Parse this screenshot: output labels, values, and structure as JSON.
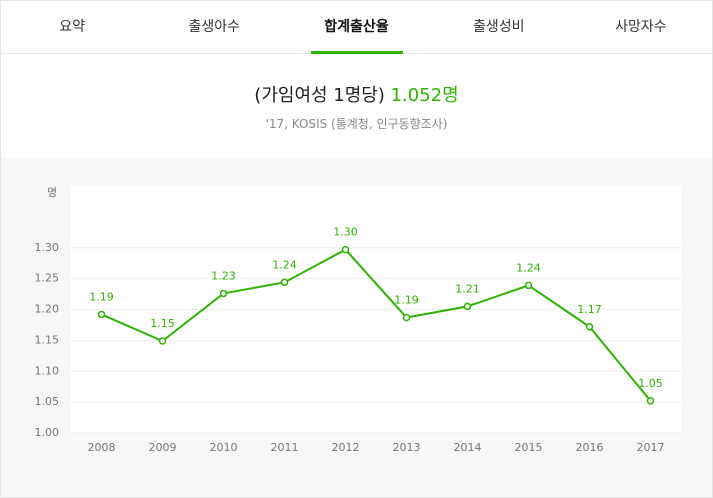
{
  "tabs": [
    "요약",
    "출생아수",
    "합계출산율",
    "출생성비",
    "사망자수"
  ],
  "active_tab": 2,
  "header": {
    "prefix": "(가임여성 1명당)",
    "highlight": "1.052명",
    "source": "'17, KOSIS (통계청, 인구동향조사)"
  },
  "chart_data": {
    "type": "line",
    "y_label": "명",
    "categories": [
      "2008",
      "2009",
      "2010",
      "2011",
      "2012",
      "2013",
      "2014",
      "2015",
      "2016",
      "2017"
    ],
    "values": [
      1.192,
      1.149,
      1.226,
      1.244,
      1.297,
      1.187,
      1.205,
      1.239,
      1.172,
      1.052
    ],
    "value_labels": [
      "1.19",
      "1.15",
      "1.23",
      "1.24",
      "1.30",
      "1.19",
      "1.21",
      "1.24",
      "1.17",
      "1.05"
    ],
    "color": "#2db400",
    "ylim": [
      1.0,
      1.4
    ],
    "yticks": [
      {
        "value": 1.0,
        "label": "1.00"
      },
      {
        "value": 1.05,
        "label": "1.05"
      },
      {
        "value": 1.1,
        "label": "1.10"
      },
      {
        "value": 1.15,
        "label": "1.15"
      },
      {
        "value": 1.2,
        "label": "1.20"
      },
      {
        "value": 1.25,
        "label": "1.25"
      },
      {
        "value": 1.3,
        "label": "1.30"
      }
    ],
    "grid": true
  }
}
